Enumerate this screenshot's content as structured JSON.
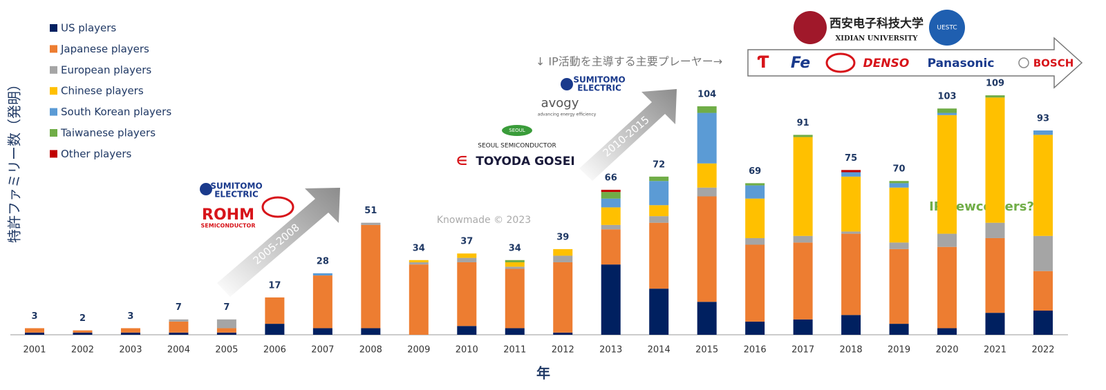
{
  "chart_data": {
    "type": "stacked_bar",
    "y_label": "特許ファミリー数（発明）",
    "x_label": "年",
    "categories": [
      "2001",
      "2002",
      "2003",
      "2004",
      "2005",
      "2006",
      "2007",
      "2008",
      "2009",
      "2010",
      "2011",
      "2012",
      "2013",
      "2014",
      "2015",
      "2016",
      "2017",
      "2018",
      "2019",
      "2020",
      "2021",
      "2022"
    ],
    "ylim": [
      0,
      115
    ],
    "series": [
      {
        "name": "US players",
        "color": "#002060",
        "values": [
          1,
          1,
          1,
          1,
          1,
          5,
          3,
          3,
          0,
          4,
          3,
          1,
          32,
          21,
          15,
          6,
          7,
          9,
          5,
          3,
          10,
          11
        ]
      },
      {
        "name": "Japanese players",
        "color": "#ed7d31",
        "values": [
          2,
          1,
          2,
          5,
          2,
          12,
          24,
          47,
          32,
          29,
          27,
          32,
          16,
          30,
          48,
          35,
          35,
          37,
          34,
          37,
          34,
          18
        ]
      },
      {
        "name": "European players",
        "color": "#a5a5a5",
        "values": [
          0,
          0,
          0,
          1,
          4,
          0,
          0,
          1,
          1,
          2,
          1,
          3,
          2,
          3,
          4,
          3,
          3,
          1,
          3,
          6,
          7,
          16
        ]
      },
      {
        "name": "Chinese players",
        "color": "#ffc000",
        "values": [
          0,
          0,
          0,
          0,
          0,
          0,
          0,
          0,
          1,
          2,
          2,
          3,
          8,
          5,
          11,
          18,
          45,
          25,
          25,
          54,
          57,
          46
        ]
      },
      {
        "name": "South Korean players",
        "color": "#5b9bd5",
        "values": [
          0,
          0,
          0,
          0,
          0,
          0,
          1,
          0,
          0,
          0,
          0,
          0,
          4,
          11,
          23,
          6,
          0,
          2,
          2,
          1,
          0,
          2
        ]
      },
      {
        "name": "Taiwanese players",
        "color": "#70ad47",
        "values": [
          0,
          0,
          0,
          0,
          0,
          0,
          0,
          0,
          0,
          0,
          1,
          0,
          3,
          2,
          3,
          1,
          1,
          0,
          1,
          2,
          1,
          0
        ]
      },
      {
        "name": "Other players",
        "color": "#c00000",
        "values": [
          0,
          0,
          0,
          0,
          0,
          0,
          0,
          0,
          0,
          0,
          0,
          0,
          1,
          0,
          0,
          0,
          0,
          1,
          0,
          0,
          0,
          0
        ]
      }
    ],
    "totals": [
      3,
      2,
      3,
      7,
      7,
      17,
      28,
      51,
      34,
      37,
      34,
      39,
      66,
      72,
      104,
      69,
      91,
      75,
      70,
      103,
      109,
      93
    ],
    "annotations": {
      "watermark": "Knowmade © 2023",
      "leaders": "↓ IP活動を主導する主要プレーヤー→",
      "newcomers": "IP newcomers?",
      "period1": "2005-2008",
      "period2": "2010-2015"
    },
    "logos": [
      "SUMITOMO",
      "ELECTRIC",
      "ROHM",
      "SEMICONDUCTOR",
      "SEOUL",
      "SEOUL SEMICONDUCTOR",
      "TOYODA GOSEI",
      "avogy",
      "advancing energy efficiency",
      "西安电子科技大学",
      "XIDIAN UNIVERSITY",
      "UESTC",
      "DENSO",
      "Panasonic",
      "BOSCH"
    ]
  }
}
